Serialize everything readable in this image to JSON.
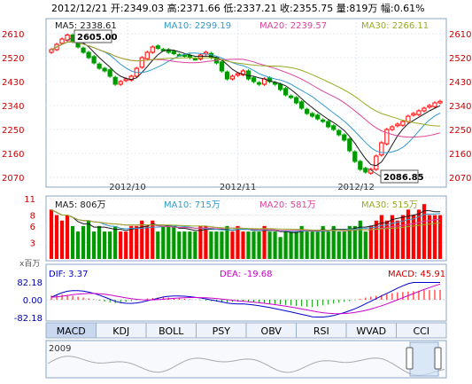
{
  "header": {
    "date": "2012/12/21",
    "open": "开:2349.03",
    "high": "高:2371.66",
    "low": "低:2337.21",
    "close": "收:2355.75",
    "volume": "量:819万",
    "change": "幅:0.61%"
  },
  "colors": {
    "up": "#ff0000",
    "down": "#009900",
    "ma5": "#1a1a1a",
    "ma10": "#3399cc",
    "ma20": "#dd4499",
    "ma30": "#99aa22",
    "macd_dif": "#0000cc",
    "macd_dea": "#cc00cc"
  },
  "chart_data": [
    {
      "type": "candlestick",
      "name": "price",
      "ylim": [
        2070,
        2610
      ],
      "yticks": [
        "2610",
        "2520",
        "2430",
        "2340",
        "2250",
        "2160",
        "2070"
      ],
      "xticks": [
        "2012/10",
        "2012/11",
        "2012/12"
      ],
      "ma_labels": {
        "ma5": "MA5: 2338.61",
        "ma10": "MA10: 2299.19",
        "ma20": "MA20: 2239.57",
        "ma30": "MA30: 2266.11"
      },
      "annotations": {
        "high": "2605.00",
        "low": "2086.85"
      },
      "close": [
        2550,
        2570,
        2590,
        2605,
        2580,
        2560,
        2540,
        2520,
        2500,
        2480,
        2470,
        2450,
        2420,
        2430,
        2440,
        2450,
        2480,
        2520,
        2540,
        2560,
        2555,
        2550,
        2540,
        2535,
        2530,
        2525,
        2520,
        2515,
        2530,
        2540,
        2520,
        2500,
        2470,
        2440,
        2450,
        2460,
        2470,
        2440,
        2430,
        2420,
        2440,
        2430,
        2420,
        2400,
        2380,
        2370,
        2350,
        2330,
        2310,
        2300,
        2290,
        2280,
        2260,
        2250,
        2230,
        2210,
        2170,
        2130,
        2100,
        2090,
        2100,
        2150,
        2200,
        2250,
        2260,
        2270,
        2280,
        2300,
        2310,
        2320,
        2330,
        2340,
        2350,
        2356
      ]
    },
    {
      "type": "bar",
      "name": "volume",
      "ylim": [
        0,
        11
      ],
      "yticks": [
        "11",
        "8",
        "6",
        "3"
      ],
      "ma_labels": {
        "ma5": "MA5: 806万",
        "ma10": "MA10: 715万",
        "ma20": "MA20: 581万",
        "ma30": "MA30: 515万"
      },
      "values": [
        9,
        8,
        7,
        8,
        6,
        5,
        6,
        7,
        5,
        6,
        5,
        5,
        6,
        5,
        5,
        6,
        6,
        7,
        6,
        7,
        5,
        6,
        6,
        6,
        5,
        5,
        5,
        5,
        6,
        6,
        5,
        5,
        5,
        6,
        5,
        6,
        5,
        5,
        5,
        5,
        6,
        5,
        5,
        4,
        5,
        5,
        5,
        6,
        5,
        5,
        5,
        6,
        5,
        6,
        5,
        5,
        6,
        6,
        7,
        5,
        6,
        7,
        8,
        7,
        8,
        7,
        8,
        9,
        8,
        9,
        10,
        8,
        8,
        8
      ]
    },
    {
      "type": "macd",
      "name": "macd",
      "ylim": [
        -82.18,
        82.18
      ],
      "yticks": [
        "82.18",
        "0.00",
        "-82.18"
      ],
      "yunit": "x百万",
      "labels": {
        "dif": "DIF: 3.37",
        "dea": "DEA: -19.68",
        "macd": "MACD: 45.91"
      },
      "hist": [
        20,
        22,
        24,
        22,
        18,
        14,
        10,
        6,
        2,
        -4,
        -8,
        -12,
        -16,
        -12,
        -10,
        -6,
        -2,
        2,
        6,
        8,
        10,
        12,
        10,
        8,
        6,
        4,
        2,
        0,
        -2,
        -4,
        -6,
        -8,
        -10,
        -12,
        -10,
        -8,
        -6,
        -10,
        -12,
        -14,
        -16,
        -18,
        -20,
        -22,
        -24,
        -26,
        -28,
        -30,
        -32,
        -34,
        -30,
        -26,
        -22,
        -18,
        -14,
        -10,
        -6,
        -2,
        4,
        10,
        14,
        18,
        22,
        26,
        30,
        34,
        36,
        38,
        40,
        42,
        44,
        45,
        46,
        45.91
      ]
    }
  ],
  "tabs": [
    "MACD",
    "KDJ",
    "BOLL",
    "PSY",
    "OBV",
    "RSI",
    "WVAD",
    "CCI"
  ],
  "navigator": {
    "year": "2009"
  }
}
